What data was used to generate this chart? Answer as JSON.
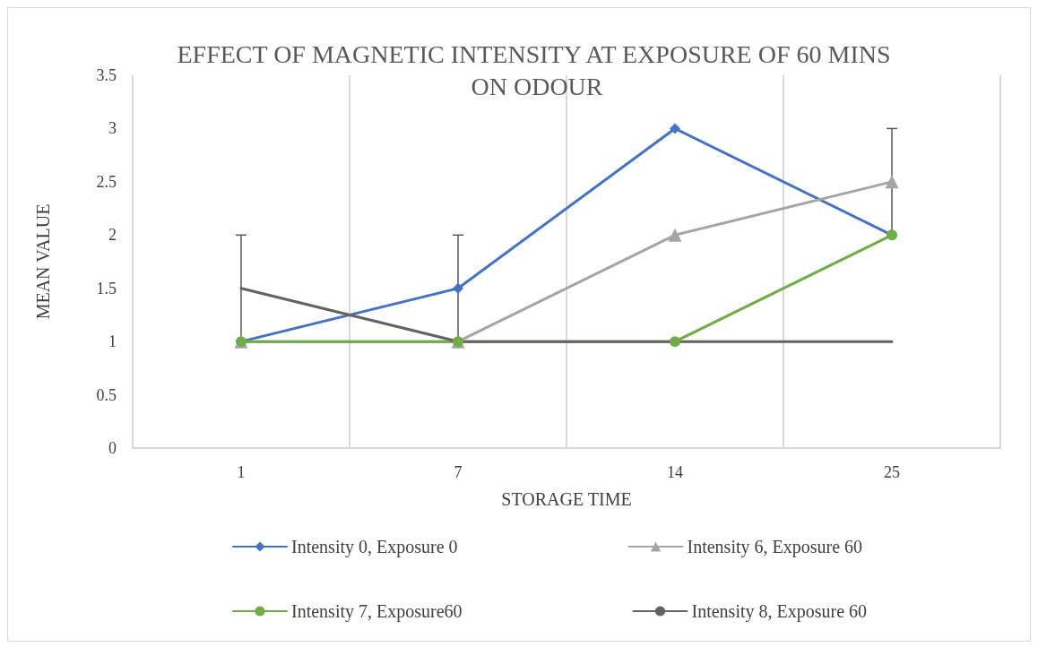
{
  "chart_data": {
    "type": "line",
    "title": "EFFECT OF MAGNETIC INTENSITY AT EXPOSURE OF 60 MINS ON ODOUR",
    "xlabel": "STORAGE TIME",
    "ylabel": "MEAN VALUE",
    "categories": [
      "1",
      "7",
      "14",
      "25"
    ],
    "series": [
      {
        "name": "Intensity 0, Exposure 0",
        "color": "#4472c4",
        "marker": "diamond",
        "values": [
          1,
          1.5,
          3,
          2
        ],
        "errors": [
          null,
          0.5,
          null,
          null
        ]
      },
      {
        "name": "Intensity 6, Exposure 60",
        "color": "#a5a5a5",
        "marker": "triangle",
        "values": [
          1,
          1,
          2,
          2.5
        ],
        "errors": [
          null,
          null,
          null,
          0.5
        ]
      },
      {
        "name": "Intensity 7, Exposure60",
        "color": "#70ad47",
        "marker": "circle",
        "values": [
          1,
          1,
          1,
          2
        ]
      },
      {
        "name": "Intensity 8, Exposure 60",
        "color": "#636363",
        "marker": "none",
        "values": [
          1.5,
          1,
          1,
          1
        ],
        "errors": [
          0.5,
          null,
          null,
          null
        ]
      }
    ],
    "ylim": [
      0,
      3.5
    ],
    "yticks": [
      0,
      0.5,
      1,
      1.5,
      2,
      2.5,
      3,
      3.5
    ],
    "grid": "x",
    "legend": "bottom",
    "line_style": "solid"
  }
}
